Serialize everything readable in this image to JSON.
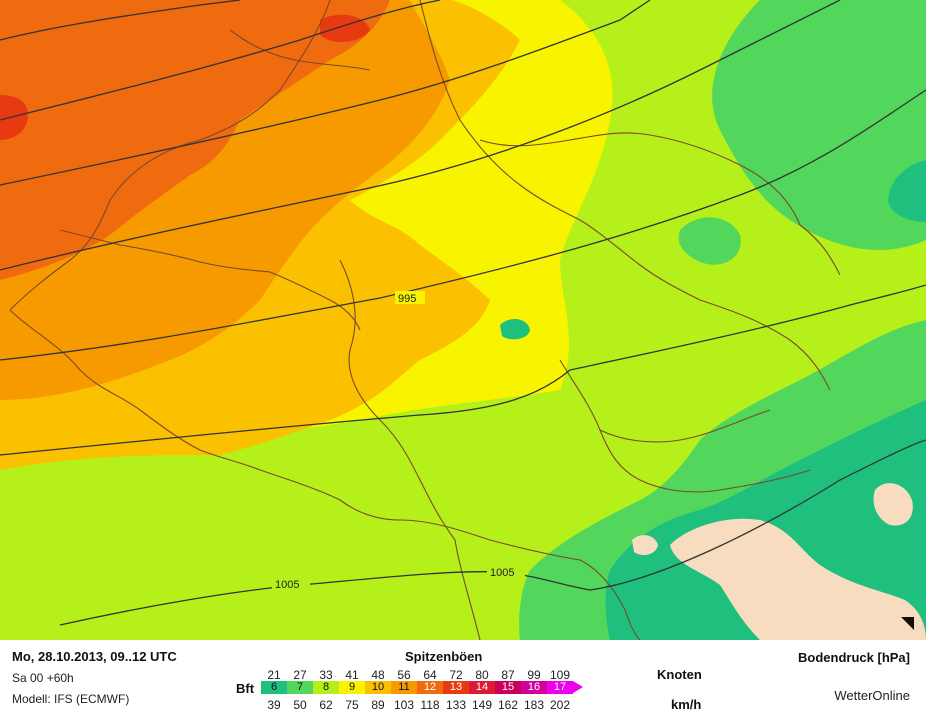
{
  "map": {
    "isobars": [
      {
        "label": "995"
      },
      {
        "label": "1005"
      },
      {
        "label": "1005"
      }
    ],
    "colors": {
      "bft6": "#1fbf7e",
      "bft7": "#52d65c",
      "bft8": "#b6f01a",
      "bft9": "#f8f400",
      "bft10": "#fbc000",
      "bft11": "#f79a00",
      "bft12": "#f06a10",
      "bft13": "#e83a10",
      "bft14": "#e01838",
      "bft15": "#c8005a",
      "bft16": "#d4009c",
      "bft17": "#ee00ee",
      "land": "#f7dcc0",
      "isobar": "#333333",
      "border": "#7a4a2a"
    }
  },
  "footer": {
    "date": "Mo, 28.10.2013, 09..12 UTC",
    "run": "Sa 00 +60h",
    "model": "Modell: IFS (ECMWF)",
    "title": "Spitzenböen",
    "right_title": "Bodendruck [hPa]",
    "brand": "WetterOnline"
  },
  "legend": {
    "bft_label": "Bft",
    "knots_label": "Knoten",
    "kmh_label": "km/h",
    "knots": [
      "21",
      "27",
      "33",
      "41",
      "48",
      "56",
      "64",
      "72",
      "80",
      "87",
      "99",
      "109"
    ],
    "kmh": [
      "39",
      "50",
      "62",
      "75",
      "89",
      "103",
      "118",
      "133",
      "149",
      "162",
      "183",
      "202"
    ],
    "bft": [
      "6",
      "7",
      "8",
      "9",
      "10",
      "11",
      "12",
      "13",
      "14",
      "15",
      "16",
      "17"
    ],
    "bft_colors": [
      "#1fbf7e",
      "#52d65c",
      "#b6f01a",
      "#f8f400",
      "#fbc000",
      "#f79a00",
      "#f06a10",
      "#e83a10",
      "#e01838",
      "#c8005a",
      "#d4009c",
      "#ee00ee"
    ]
  }
}
